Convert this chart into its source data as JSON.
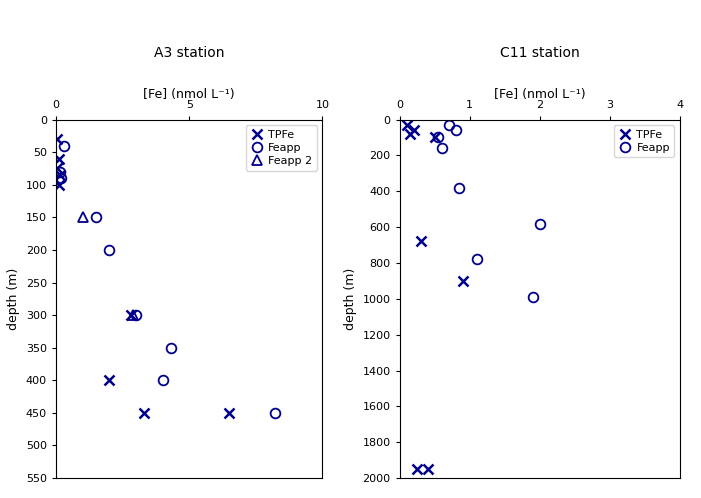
{
  "A3": {
    "title": "A3 station",
    "xlabel": "[Fe] (nmol L⁻¹)",
    "ylabel": "depth (m)",
    "xlim": [
      0.0,
      10.0
    ],
    "ylim": [
      550,
      0
    ],
    "xticks": [
      0.0,
      5.0,
      10.0
    ],
    "yticks": [
      0,
      50,
      100,
      150,
      200,
      250,
      300,
      350,
      400,
      450,
      500,
      550
    ],
    "TPFe": {
      "fe": [
        0.05,
        0.1,
        0.05,
        0.15,
        0.1,
        2.8,
        2.0,
        3.3,
        6.5
      ],
      "depth": [
        30,
        60,
        75,
        85,
        100,
        300,
        400,
        450,
        450
      ]
    },
    "Feapp": {
      "fe": [
        0.3,
        0.15,
        0.2,
        1.5,
        2.0,
        3.0,
        4.3,
        4.0,
        8.2
      ],
      "depth": [
        40,
        80,
        90,
        150,
        200,
        300,
        350,
        400,
        450
      ]
    },
    "Feapp2": {
      "fe": [
        1.0,
        2.9
      ],
      "depth": [
        150,
        300
      ]
    }
  },
  "C11": {
    "title": "C11 station",
    "xlabel": "[Fe] (nmol L⁻¹)",
    "ylabel": "depth (m)",
    "xlim": [
      0.0,
      4.0
    ],
    "ylim": [
      2000,
      0
    ],
    "xticks": [
      0.0,
      1.0,
      2.0,
      3.0,
      4.0
    ],
    "yticks": [
      0,
      200,
      400,
      600,
      800,
      1000,
      1200,
      1400,
      1600,
      1800,
      2000
    ],
    "TPFe": {
      "fe": [
        0.1,
        0.2,
        0.15,
        0.5,
        0.3,
        0.9,
        0.25,
        0.4
      ],
      "depth": [
        30,
        60,
        80,
        100,
        680,
        900,
        1950,
        1950
      ]
    },
    "Feapp": {
      "fe": [
        0.7,
        0.8,
        0.55,
        0.6,
        0.85,
        2.0,
        1.1,
        1.9
      ],
      "depth": [
        30,
        60,
        100,
        160,
        380,
        580,
        780,
        990
      ]
    }
  },
  "color": "#00008B",
  "marker_size": 7,
  "marker_linewidth": 1.3,
  "fontsize_title": 10,
  "fontsize_label": 9,
  "fontsize_tick": 8,
  "fontsize_legend": 8
}
